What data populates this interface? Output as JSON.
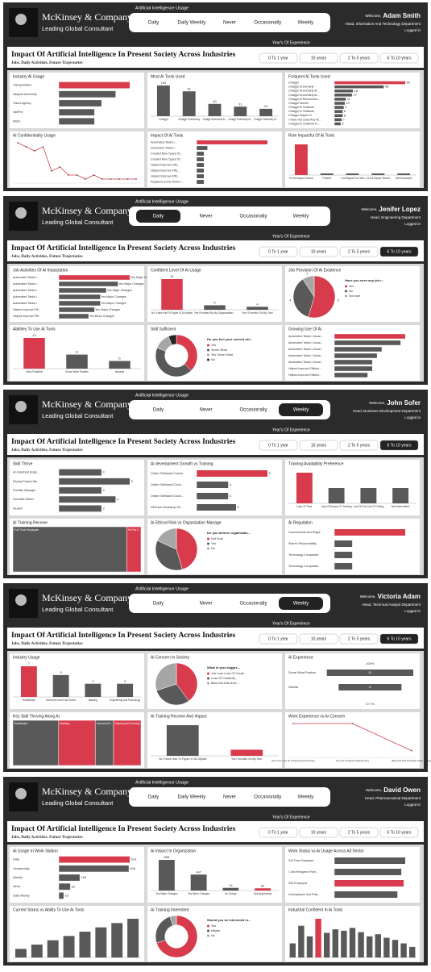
{
  "colors": {
    "accent": "#d83b4b",
    "bar": "#595959",
    "light": "#a6a6a6",
    "dark": "#262626"
  },
  "dashboards": [
    {
      "brand": "McKinsey & Company",
      "tagline": "Leading Global Consultant",
      "slicer_title": "Artificial Intelligence Usage",
      "slicer_options": [
        "Daily",
        "Daily Weekly",
        "Never",
        "Occasionally",
        "Weekly"
      ],
      "slicer_selected": null,
      "welcome": "Welcome,",
      "name": "Adam Smith",
      "role": "Head, Information And Technology Department",
      "status": "Logged in",
      "title": "Impact Of Artificial Intelligence In Present Society Across Industries",
      "subtitle": "Jobs,  Daily Activities,  Future Trajectories",
      "experience_title": "Year's Of Experience",
      "experience_options": [
        "0 To 1 year",
        "10 years",
        "2 To 5 years",
        "6 To 10 years"
      ],
      "experience_selected": null,
      "panels": [
        {
          "title": "Industry Ai Usage",
          "type": "hbar",
          "categories": [
            "Transportation",
            "Vasphia University",
            "Travel Agency",
            "VasPhe",
            "Web2"
          ],
          "values": [
            10,
            8,
            6,
            5,
            5
          ],
          "highlight": 0
        },
        {
          "title": "Most Ai Tools Used",
          "type": "vbar",
          "categories": [
            "Chatgpt",
            "Chatgpt Grammarly",
            "Chatgpt Grammarly AI...",
            "Chatgpt Grammarly AI...",
            "Chatgpt Grammarly AI..."
          ],
          "values": [
            100,
            81,
            40,
            31,
            24
          ],
          "show_values": true
        },
        {
          "title": "Frequent Ai Tools Used",
          "type": "hbar",
          "categories": [
            "Chatgpt",
            "Chatgpt Grammarly",
            "Chatgpt Grammarly AI...",
            "Chatgpt Grammarly AI...",
            "Chatgpt AI Recommen...",
            "Chatgpt Gemini",
            "Chatgpt AI Chatbots",
            "Chatgpt In Chatbots",
            "Chatgpt Jasper AI",
            "I Have Not Used Any AI...",
            "Chatgpt AI Chatbots In..."
          ],
          "values": [
            69,
            48,
            18,
            17,
            11,
            10,
            9,
            8,
            8,
            7,
            6
          ],
          "highlight": 0,
          "show_values": true
        },
        {
          "title": "Ai Confidentiality Usage",
          "type": "line",
          "values": [
            10,
            9,
            8,
            9,
            3,
            4,
            2,
            2,
            1,
            2,
            1,
            1,
            1,
            1,
            1
          ]
        },
        {
          "title": "Impact Of Ai Tools",
          "type": "hbar",
          "categories": [
            "Automated Tasks I...",
            "Automated Tasks I...",
            "Created New Types Of...",
            "Created New Types Of...",
            "Helped Improve Effic...",
            "Helped Improve Effic...",
            "Helped Improve Effic...",
            "Replaced Some Roles I..."
          ],
          "values": [
            20,
            3,
            2,
            2,
            2,
            2,
            2,
            2
          ],
          "highlight": 0
        },
        {
          "title": "Role Impactful Of Ai Tools",
          "type": "vbar",
          "categories": [
            "Full Time Employee Freelancer",
            "Finance",
            "I Just Resigned From Work",
            "Full Time Employee Freelancer",
            "Self Employed"
          ],
          "values": [
            20,
            1,
            1,
            1,
            1
          ],
          "highlight": 0
        }
      ]
    },
    {
      "brand": "McKinsey & Company",
      "tagline": "Leading Global Consultant",
      "slicer_title": "Artificial Intelligence Usage",
      "slicer_options": [
        "Daily",
        "Never",
        "Occasionally",
        "Weekly"
      ],
      "slicer_selected": 0,
      "welcome": "Welcome,",
      "name": "Jenifer Lopez",
      "role": "Head, Engineering Department",
      "status": "Logged in",
      "title": "Impact Of Artificial Intelligence In Present Society Across Industries",
      "subtitle": "Jobs,  Daily Activities,  Future Trajectories",
      "experience_title": "Year's Of Experience",
      "experience_options": [
        "0 To 1 year",
        "10 years",
        "2 To 5 years",
        "6 To 10 years"
      ],
      "experience_selected": 3,
      "panels": [
        {
          "title": "Job Activities Of Ai Impactation",
          "type": "hbar",
          "categories": [
            "Automated Tasks I...",
            "Automated Tasks I...",
            "Automated Tasks I...",
            "Automated Tasks I...",
            "Automated Tasks I...",
            "Helped Improve Effi...",
            "Helped Improve Effi..."
          ],
          "values": [
            12,
            10,
            8,
            7,
            7,
            6,
            5
          ],
          "bar_labels": [
            "Yes Major Changes",
            "Yes Major Changes",
            "Yes Major Changes",
            "Yes Major Changes",
            "Yes Major Changes",
            "Yes Major Changes",
            "Yes Minor Changes"
          ],
          "highlight": 0
        },
        {
          "title": "Confident Level Of Ai Usage",
          "type": "vbar",
          "categories": [
            "No I Have Had To Figure It Out Myself",
            "Yes Provided By My Organization...",
            "Yes I Enrolled On My Own"
          ],
          "values": [
            41,
            6,
            4
          ],
          "highlight": 0,
          "show_values": true
        },
        {
          "title": "Job Provision Of Ai Existence",
          "type": "pie",
          "legend_title": "Have you seen any job r...",
          "categories": [
            "Yes",
            "No",
            "Not sure"
          ],
          "values": [
            6,
            4,
            1
          ],
          "show_values": true
        },
        {
          "title": "Abilities To Use Ai Tools",
          "type": "vbar",
          "categories": [
            "Very Positive",
            "Some What Positive",
            "Neutral"
          ],
          "values": [
            24,
            11,
            6
          ],
          "highlight": 0,
          "show_values": true
        },
        {
          "title": "Skill Sufficient",
          "type": "donut",
          "legend_title": "Do you feel your current ski...",
          "categories": [
            "Yes",
            "Some What",
            "Yes Some What",
            "No"
          ],
          "values": [
            12,
            14,
            4,
            2
          ]
        },
        {
          "title": "Growing Use Of Ai",
          "type": "hbar",
          "categories": [
            "Automated Tasks I Usual...",
            "Automated Tasks I Usual...",
            "Automated Tasks I Usual...",
            "Automated Tasks I Usual...",
            "Automated Tasks I Usual...",
            "Helped Improve Efficien...",
            "Helped Improve Efficien..."
          ],
          "values": [
            15,
            14,
            10,
            9,
            8,
            8,
            7
          ],
          "highlight": 0
        }
      ]
    },
    {
      "brand": "McKinsey & Company",
      "tagline": "Leading Global Consultant",
      "slicer_title": "Artificial Intelligence Usage",
      "slicer_options": [
        "Daily",
        "Never",
        "Occasionally",
        "Weekly"
      ],
      "slicer_selected": 3,
      "welcome": "Welcome,",
      "name": "John Sofer",
      "role": "Head, Business Development Department",
      "status": "Logged in",
      "title": "Impact Of Artificial Intelligence In Present Society Across Industries",
      "subtitle": "Jobs,  Daily Activities,  Future Trajectories",
      "experience_title": "Year's Of Experience",
      "experience_options": [
        "0 To 1 year",
        "10 years",
        "2 To 5 years",
        "6 To 10 years"
      ],
      "experience_selected": 3,
      "panels": [
        {
          "title": "Skill Thrive",
          "type": "hbar",
          "categories": [
            "An Electrical Engin...",
            "Deputy Project Ma...",
            "Portfolio Manager",
            "Scientific Officer",
            "Student"
          ],
          "values": [
            3,
            5,
            3,
            4,
            3
          ],
          "show_values": true
        },
        {
          "title": "Ai development Growth vs Training",
          "type": "hbar",
          "categories": [
            "Online Selfhaced Course...",
            "Online Selfhaced Cours...",
            "Online Selfhaced Cours...",
            "InPerson Workshop On..."
          ],
          "values": [
            9,
            4,
            4,
            5
          ],
          "highlight": 0,
          "show_values": true
        },
        {
          "title": "Training Availability Preference",
          "type": "vbar",
          "categories": [
            "Lack Of Time",
            "Lack Of Access To Training",
            "Lack Of Time Cost Of Training",
            "Not Interested"
          ],
          "values": [
            4,
            2,
            2,
            2
          ],
          "highlight": 0
        },
        {
          "title": "Ai Training Receive",
          "type": "treemap",
          "categories": [
            "Full Time Employee",
            "Part Time E..."
          ],
          "values": [
            8,
            1
          ]
        },
        {
          "title": "Ai Ethical Risk vs Organization Manage",
          "type": "pie",
          "legend_title": "Do you believe organizatio...",
          "categories": [
            "Not Sure",
            "Yes",
            "No"
          ],
          "values": [
            5,
            4,
            2
          ]
        },
        {
          "title": "Ai Regulation",
          "type": "hbar",
          "categories": [
            "Governments And Regul...",
            "Shared Responsibility",
            "Technology Companies",
            "Technology Companies"
          ],
          "values": [
            4,
            1,
            1,
            1
          ],
          "highlight": 0
        }
      ]
    },
    {
      "brand": "McKinsey & Company",
      "tagline": "Leading Global Consultant",
      "slicer_title": "Artificial Intelligence Usage",
      "slicer_options": [
        "Daily",
        "Never",
        "Occasionally",
        "Weekly"
      ],
      "slicer_selected": 3,
      "welcome": "Welcome,",
      "name": "Victoria Adam",
      "role": "Head, Technical Analyst Department",
      "status": "Logged in",
      "title": "Impact Of Artificial Intelligence In Present Society Across Industries",
      "subtitle": "Jobs,  Daily Activities,  Future Trajectories",
      "experience_title": "Year's Of Experience",
      "experience_options": [
        "0 To 1 year",
        "10 years",
        "2 To 5 years",
        "6 To 10 years"
      ],
      "experience_selected": 3,
      "panels": [
        {
          "title": "Industry Usage",
          "type": "vbar",
          "categories": [
            "Healthcare",
            "Government And Public Service",
            "Banking",
            "Engineering And Technology"
          ],
          "values": [
            7,
            5,
            3,
            3
          ],
          "highlight": 0,
          "show_values": true
        },
        {
          "title": "Ai Concern In Society",
          "type": "pie",
          "legend_title": "What is your bigger...",
          "categories": [
            "Job Loss Loss Of Creati...",
            "Loss Of Creativity...",
            "Bias And Discrimin..."
          ],
          "values": [
            4,
            3,
            3
          ]
        },
        {
          "title": "Ai Experience",
          "type": "funnel",
          "categories": [
            "Some What Positive",
            "Neutral"
          ],
          "values": [
            11,
            8
          ],
          "rate_labels": [
            "100%",
            "72.7%"
          ],
          "show_values": true
        },
        {
          "title": "Key Skill Thriving Along Ai",
          "type": "treemap",
          "categories": [
            "Healthcare",
            "Banking",
            "Government And Pu...",
            "Engineering And Technology"
          ],
          "values": [
            5,
            4,
            2,
            3
          ]
        },
        {
          "title": "Ai Training Receive And Impact",
          "type": "vbar",
          "categories": [
            "No I Have Had To Figure It Out Myself",
            "Yes I Enrolled On My Own"
          ],
          "values": [
            5,
            1
          ],
          "highlight": 1
        },
        {
          "title": "Work Experience vs Ai Concern",
          "type": "line",
          "categories": [
            "Job Loss Loss Of Creativity Data Privacy",
            "Loss Of Creativity Data Privacy",
            "Bias And Discrimination Data Privacy"
          ],
          "values": [
            5,
            5,
            1
          ]
        }
      ]
    },
    {
      "brand": "McKinsey & Company",
      "tagline": "Leading Global Consultant",
      "slicer_title": "Artificial Intelligence Usage",
      "slicer_options": [
        "Daily",
        "Daily Weekly",
        "Never",
        "Occasionally",
        "Weekly"
      ],
      "slicer_selected": null,
      "welcome": "Welcome,",
      "name": "David Owen",
      "role": "Head, Pharmaceutical Department",
      "status": "Logged in",
      "title": "Impact Of Artificial Intelligence In Present Society Across Industries",
      "subtitle": "Jobs,  Daily Activities,  Future Trajectories",
      "experience_title": "Year's Of Experience",
      "experience_options": [
        "0 To 1 year",
        "10 years",
        "2 To 5 years",
        "6 To 10 years"
      ],
      "experience_selected": null,
      "panels": [
        {
          "title": "Ai Usage In Work Station",
          "type": "hbar",
          "categories": [
            "Daily",
            "Occasionally",
            "Weekly",
            "Never",
            "Daily Weekly"
          ],
          "values": [
            513,
            506,
            150,
            81,
            33
          ],
          "highlight": 0,
          "show_values": true
        },
        {
          "title": "Ai Impact In Organization",
          "type": "vbar",
          "categories": [
            "Yes Major Changes",
            "Yes Minor Changes",
            "No Change",
            "Not Applicable"
          ],
          "values": [
            858,
            447,
            74,
            62
          ],
          "highlight": 3,
          "show_values": true
        },
        {
          "title": "Work Status vs Ai Usage Across All Sector",
          "type": "hbar",
          "categories": [
            "Full Time Employee",
            "I Just Resigned From...",
            "Self Employed",
            "Unemployed Just Finis..."
          ],
          "values": [
            90,
            85,
            88,
            80
          ],
          "highlight": 2
        },
        {
          "title": "Current Status vs Ability To Use Ai Tools",
          "type": "vbar",
          "values": [
            2,
            3,
            4,
            5,
            6,
            7,
            8,
            9
          ]
        },
        {
          "title": "Ai Training Interested",
          "type": "donut",
          "legend_title": "Would you be interested in...",
          "categories": [
            "Yes",
            "Maybe",
            "No"
          ],
          "values": [
            70,
            25,
            5
          ]
        },
        {
          "title": "Industrial Confident In Ai Tools",
          "type": "vbar",
          "values": [
            20,
            45,
            30,
            55,
            35,
            40,
            38,
            42,
            36,
            30,
            33,
            28,
            25,
            20,
            15
          ],
          "highlight": 3
        }
      ]
    }
  ]
}
